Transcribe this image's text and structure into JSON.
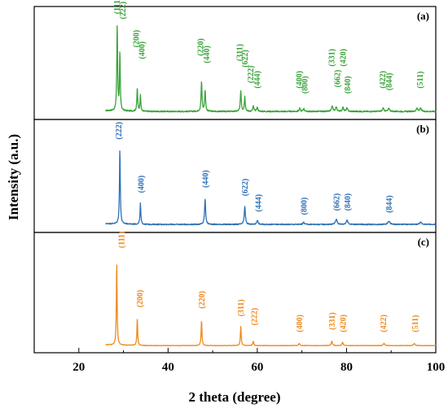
{
  "chart_data": {
    "type": "line",
    "xlabel": "2 theta (degree)",
    "ylabel": "Intensity (a.u.)",
    "xlim": [
      10,
      100
    ],
    "xticks": [
      20,
      40,
      60,
      80,
      100
    ],
    "grid": false,
    "panels": [
      {
        "id": "a",
        "label": "(a)",
        "color": "#3aa33a",
        "baseline": 0.03,
        "noise": 0.012,
        "peaks": [
          {
            "x": 28.6,
            "y": 0.82,
            "w": 0.22
          },
          {
            "x": 29.2,
            "y": 0.55,
            "w": 0.2
          },
          {
            "x": 33.1,
            "y": 0.22,
            "w": 0.22
          },
          {
            "x": 33.8,
            "y": 0.16,
            "w": 0.2
          },
          {
            "x": 47.5,
            "y": 0.28,
            "w": 0.25
          },
          {
            "x": 48.3,
            "y": 0.2,
            "w": 0.25
          },
          {
            "x": 56.3,
            "y": 0.2,
            "w": 0.25
          },
          {
            "x": 57.2,
            "y": 0.14,
            "w": 0.25
          },
          {
            "x": 59.1,
            "y": 0.05,
            "w": 0.3
          },
          {
            "x": 60.0,
            "y": 0.04,
            "w": 0.3
          },
          {
            "x": 69.5,
            "y": 0.03,
            "w": 0.3
          },
          {
            "x": 70.4,
            "y": 0.03,
            "w": 0.3
          },
          {
            "x": 76.8,
            "y": 0.05,
            "w": 0.35
          },
          {
            "x": 77.7,
            "y": 0.04,
            "w": 0.35
          },
          {
            "x": 79.2,
            "y": 0.04,
            "w": 0.35
          },
          {
            "x": 80.1,
            "y": 0.03,
            "w": 0.35
          },
          {
            "x": 88.2,
            "y": 0.03,
            "w": 0.4
          },
          {
            "x": 89.5,
            "y": 0.03,
            "w": 0.4
          },
          {
            "x": 95.8,
            "y": 0.03,
            "w": 0.4
          },
          {
            "x": 96.6,
            "y": 0.03,
            "w": 0.4
          }
        ],
        "labels": [
          {
            "text": "(111)",
            "x": 28.6,
            "y": 0.96
          },
          {
            "text": "(222)",
            "x": 29.9,
            "y": 0.91
          },
          {
            "text": "(200)",
            "x": 32.9,
            "y": 0.64
          },
          {
            "text": "(400)",
            "x": 34.2,
            "y": 0.53
          },
          {
            "text": "(220)",
            "x": 47.3,
            "y": 0.56
          },
          {
            "text": "(440)",
            "x": 48.7,
            "y": 0.49
          },
          {
            "text": "(311)",
            "x": 56.1,
            "y": 0.51
          },
          {
            "text": "(622)",
            "x": 57.3,
            "y": 0.45
          },
          {
            "text": "(222)",
            "x": 58.6,
            "y": 0.3
          },
          {
            "text": "(444)",
            "x": 60.0,
            "y": 0.25
          },
          {
            "text": "(400)",
            "x": 69.4,
            "y": 0.25
          },
          {
            "text": "(800)",
            "x": 70.7,
            "y": 0.2
          },
          {
            "text": "(331)",
            "x": 76.7,
            "y": 0.46
          },
          {
            "text": "(420)",
            "x": 79.3,
            "y": 0.46
          },
          {
            "text": "(662)",
            "x": 78.0,
            "y": 0.26
          },
          {
            "text": "(840)",
            "x": 80.3,
            "y": 0.2
          },
          {
            "text": "(422)",
            "x": 88.1,
            "y": 0.25
          },
          {
            "text": "(844)",
            "x": 89.6,
            "y": 0.23
          },
          {
            "text": "(511)",
            "x": 96.5,
            "y": 0.25
          }
        ]
      },
      {
        "id": "b",
        "label": "(b)",
        "color": "#2e6fb5",
        "baseline": 0.03,
        "noise": 0.01,
        "peaks": [
          {
            "x": 29.2,
            "y": 0.72,
            "w": 0.22
          },
          {
            "x": 33.8,
            "y": 0.2,
            "w": 0.22
          },
          {
            "x": 48.3,
            "y": 0.24,
            "w": 0.28
          },
          {
            "x": 57.2,
            "y": 0.17,
            "w": 0.3
          },
          {
            "x": 60.0,
            "y": 0.04,
            "w": 0.35
          },
          {
            "x": 70.4,
            "y": 0.02,
            "w": 0.4
          },
          {
            "x": 77.7,
            "y": 0.05,
            "w": 0.45
          },
          {
            "x": 80.1,
            "y": 0.04,
            "w": 0.45
          },
          {
            "x": 89.5,
            "y": 0.03,
            "w": 0.55
          },
          {
            "x": 96.6,
            "y": 0.02,
            "w": 0.55
          }
        ],
        "labels": [
          {
            "text": "(222)",
            "x": 29.0,
            "y": 0.84
          },
          {
            "text": "(400)",
            "x": 34.0,
            "y": 0.33
          },
          {
            "text": "(440)",
            "x": 48.4,
            "y": 0.38
          },
          {
            "text": "(622)",
            "x": 57.3,
            "y": 0.3
          },
          {
            "text": "(444)",
            "x": 60.3,
            "y": 0.15
          },
          {
            "text": "(800)",
            "x": 70.5,
            "y": 0.12
          },
          {
            "text": "(662)",
            "x": 77.8,
            "y": 0.16
          },
          {
            "text": "(840)",
            "x": 80.3,
            "y": 0.16
          },
          {
            "text": "(844)",
            "x": 89.6,
            "y": 0.14
          }
        ]
      },
      {
        "id": "c",
        "label": "(c)",
        "color": "#f08a1c",
        "baseline": 0.02,
        "noise": 0.004,
        "peaks": [
          {
            "x": 28.5,
            "y": 0.74,
            "w": 0.2
          },
          {
            "x": 33.1,
            "y": 0.24,
            "w": 0.2
          },
          {
            "x": 47.5,
            "y": 0.22,
            "w": 0.22
          },
          {
            "x": 56.3,
            "y": 0.17,
            "w": 0.22
          },
          {
            "x": 59.1,
            "y": 0.04,
            "w": 0.25
          },
          {
            "x": 69.4,
            "y": 0.02,
            "w": 0.3
          },
          {
            "x": 76.7,
            "y": 0.04,
            "w": 0.3
          },
          {
            "x": 79.1,
            "y": 0.03,
            "w": 0.3
          },
          {
            "x": 88.4,
            "y": 0.02,
            "w": 0.35
          },
          {
            "x": 95.2,
            "y": 0.02,
            "w": 0.35
          }
        ],
        "labels": [
          {
            "text": "(111)",
            "x": 29.6,
            "y": 0.89
          },
          {
            "text": "(200)",
            "x": 33.7,
            "y": 0.36
          },
          {
            "text": "(220)",
            "x": 47.6,
            "y": 0.35
          },
          {
            "text": "(311)",
            "x": 56.4,
            "y": 0.28
          },
          {
            "text": "(222)",
            "x": 59.4,
            "y": 0.2
          },
          {
            "text": "(400)",
            "x": 69.5,
            "y": 0.14
          },
          {
            "text": "(331)",
            "x": 76.8,
            "y": 0.16
          },
          {
            "text": "(420)",
            "x": 79.3,
            "y": 0.14
          },
          {
            "text": "(422)",
            "x": 88.3,
            "y": 0.14
          },
          {
            "text": "(511)",
            "x": 95.4,
            "y": 0.14
          }
        ]
      }
    ]
  }
}
